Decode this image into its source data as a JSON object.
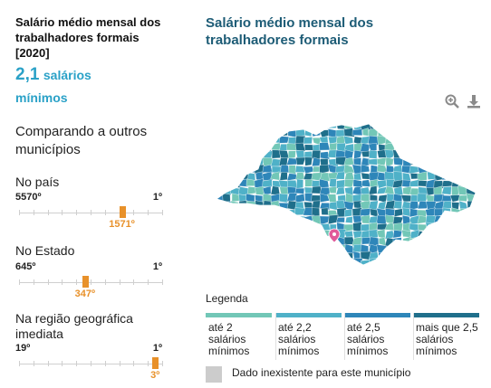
{
  "indicator": {
    "title": "Salário médio mensal dos trabalhadores formais [2020]",
    "value": "2,1",
    "unit_line1": "salários",
    "unit_line2": "mínimos"
  },
  "comparison": {
    "heading": "Comparando a outros municípios",
    "sections": [
      {
        "label": "No país",
        "worst": "5570º",
        "best": "1º",
        "rank": "1571º",
        "position_fraction": 0.72
      },
      {
        "label": "No Estado",
        "worst": "645º",
        "best": "1º",
        "rank": "347º",
        "position_fraction": 0.46
      },
      {
        "label": "Na região geográfica imediata",
        "worst": "19º",
        "best": "1º",
        "rank": "3º",
        "position_fraction": 0.95
      }
    ]
  },
  "map_panel": {
    "title": "Salário médio mensal dos trabalhadores formais",
    "zoom_icon": "zoom-in-icon",
    "download_icon": "download-icon"
  },
  "legend": {
    "title": "Legenda",
    "items": [
      {
        "label": "até 2 salários mínimos",
        "color": "#72c7b7"
      },
      {
        "label": "até 2,2 salários mínimos",
        "color": "#4fb1c8"
      },
      {
        "label": "até 2,5 salários mínimos",
        "color": "#2e86b9"
      },
      {
        "label": "mais que 2,5 salários mínimos",
        "color": "#1f6f8b"
      }
    ],
    "no_data": {
      "label": "Dado inexistente para este município",
      "color": "#cccccc"
    }
  },
  "colors": {
    "accent": "#2aa1c7",
    "marker": "#e8912a",
    "title": "#1d5c76",
    "highlight": "#e05a9a"
  }
}
